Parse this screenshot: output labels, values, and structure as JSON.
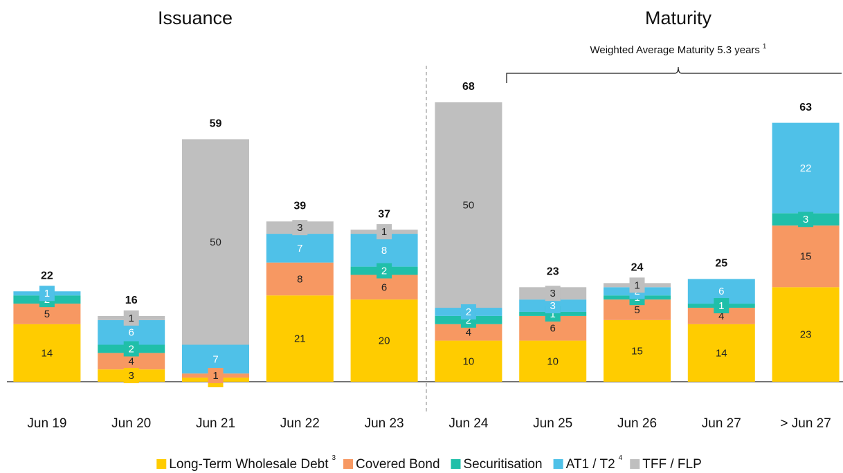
{
  "chart_data": {
    "type": "stacked_bar",
    "group_titles": [
      "Issuance",
      "Maturity"
    ],
    "annotation": "Weighted  Average Maturity 5.3 years",
    "annotation_footnote": "1",
    "categories": [
      "Jun 19",
      "Jun 20",
      "Jun 21",
      "Jun 22",
      "Jun 23",
      "Jun 24",
      "Jun 25",
      "Jun 26",
      "Jun 27",
      "> Jun 27"
    ],
    "series": [
      {
        "name": "Long-Term Wholesale Debt",
        "footnote": "3",
        "color": "#ffcc00",
        "label_color": "#222222",
        "values": [
          14,
          3,
          1,
          21,
          20,
          10,
          10,
          15,
          14,
          23
        ]
      },
      {
        "name": "Covered Bond",
        "color": "#f79862",
        "label_color": "#222222",
        "values": [
          5,
          4,
          1,
          8,
          6,
          4,
          6,
          5,
          4,
          15
        ]
      },
      {
        "name": "Securitisation",
        "color": "#20bfa9",
        "label_color": "#ffffff",
        "values": [
          2,
          2,
          null,
          null,
          2,
          2,
          1,
          1,
          1,
          3
        ]
      },
      {
        "name": "AT1 / T2",
        "footnote": "4",
        "color": "#4fc1e8",
        "label_color": "#ffffff",
        "values": [
          1,
          6,
          7,
          7,
          8,
          2,
          3,
          2,
          6,
          22
        ]
      },
      {
        "name": "TFF / FLP",
        "color": "#bfbfbf",
        "label_color": "#222222",
        "values": [
          null,
          1,
          50,
          3,
          1,
          50,
          3,
          1,
          null,
          null
        ]
      }
    ],
    "totals": [
      22,
      16,
      59,
      39,
      37,
      68,
      23,
      24,
      25,
      63
    ],
    "ylim": [
      0,
      70
    ],
    "legend": "bottom"
  }
}
